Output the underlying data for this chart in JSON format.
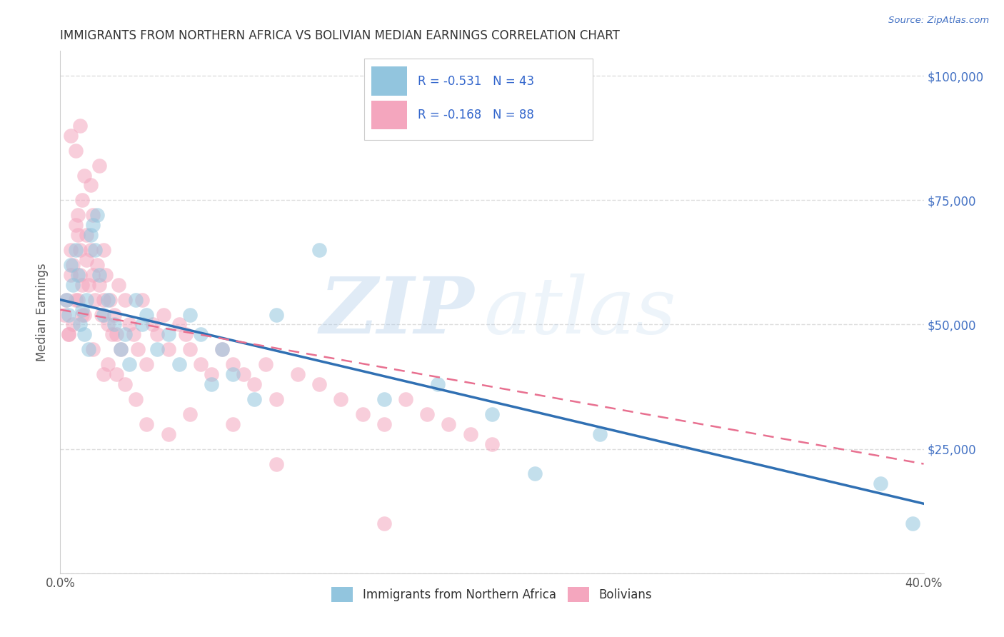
{
  "title": "IMMIGRANTS FROM NORTHERN AFRICA VS BOLIVIAN MEDIAN EARNINGS CORRELATION CHART",
  "source": "Source: ZipAtlas.com",
  "ylabel": "Median Earnings",
  "xlim": [
    0.0,
    0.4
  ],
  "ylim": [
    0,
    105000
  ],
  "yticks": [
    0,
    25000,
    50000,
    75000,
    100000
  ],
  "ytick_labels": [
    "",
    "$25,000",
    "$50,000",
    "$75,000",
    "$100,000"
  ],
  "xticks": [
    0.0,
    0.1,
    0.2,
    0.3,
    0.4
  ],
  "xtick_labels": [
    "0.0%",
    "",
    "",
    "",
    "40.0%"
  ],
  "blue_R": -0.531,
  "blue_N": 43,
  "pink_R": -0.168,
  "pink_N": 88,
  "blue_color": "#92c5de",
  "pink_color": "#f4a6be",
  "blue_line_color": "#3070b3",
  "pink_line_color": "#e87090",
  "background_color": "#ffffff",
  "grid_color": "#dddddd",
  "title_color": "#333333",
  "right_axis_color": "#4472c4",
  "legend_label_blue": "Immigrants from Northern Africa",
  "legend_label_pink": "Bolivians",
  "blue_line_x0": 0.0,
  "blue_line_y0": 55000,
  "blue_line_x1": 0.4,
  "blue_line_y1": 14000,
  "pink_line_x0": 0.0,
  "pink_line_y0": 53000,
  "pink_line_x1": 0.4,
  "pink_line_y1": 22000,
  "blue_scatter_x": [
    0.003,
    0.004,
    0.005,
    0.006,
    0.007,
    0.008,
    0.009,
    0.01,
    0.011,
    0.012,
    0.013,
    0.014,
    0.015,
    0.016,
    0.017,
    0.018,
    0.02,
    0.022,
    0.025,
    0.028,
    0.03,
    0.032,
    0.035,
    0.038,
    0.04,
    0.045,
    0.05,
    0.055,
    0.06,
    0.065,
    0.07,
    0.075,
    0.08,
    0.09,
    0.1,
    0.12,
    0.15,
    0.175,
    0.2,
    0.22,
    0.25,
    0.38,
    0.395
  ],
  "blue_scatter_y": [
    55000,
    52000,
    62000,
    58000,
    65000,
    60000,
    50000,
    53000,
    48000,
    55000,
    45000,
    68000,
    70000,
    65000,
    72000,
    60000,
    52000,
    55000,
    50000,
    45000,
    48000,
    42000,
    55000,
    50000,
    52000,
    45000,
    48000,
    42000,
    52000,
    48000,
    38000,
    45000,
    40000,
    35000,
    52000,
    65000,
    35000,
    38000,
    32000,
    20000,
    28000,
    18000,
    10000
  ],
  "pink_scatter_x": [
    0.002,
    0.003,
    0.004,
    0.005,
    0.005,
    0.006,
    0.007,
    0.007,
    0.008,
    0.008,
    0.009,
    0.009,
    0.01,
    0.01,
    0.011,
    0.012,
    0.012,
    0.013,
    0.014,
    0.015,
    0.015,
    0.016,
    0.017,
    0.018,
    0.019,
    0.02,
    0.02,
    0.021,
    0.022,
    0.023,
    0.024,
    0.025,
    0.026,
    0.027,
    0.028,
    0.03,
    0.032,
    0.034,
    0.036,
    0.038,
    0.04,
    0.043,
    0.045,
    0.048,
    0.05,
    0.055,
    0.058,
    0.06,
    0.065,
    0.07,
    0.075,
    0.08,
    0.085,
    0.09,
    0.095,
    0.1,
    0.11,
    0.12,
    0.13,
    0.14,
    0.15,
    0.16,
    0.17,
    0.18,
    0.19,
    0.2,
    0.005,
    0.007,
    0.009,
    0.011,
    0.014,
    0.018,
    0.022,
    0.026,
    0.03,
    0.035,
    0.04,
    0.05,
    0.06,
    0.08,
    0.1,
    0.15,
    0.004,
    0.006,
    0.008,
    0.01,
    0.015,
    0.02
  ],
  "pink_scatter_y": [
    52000,
    55000,
    48000,
    60000,
    65000,
    62000,
    55000,
    70000,
    68000,
    72000,
    65000,
    60000,
    75000,
    58000,
    52000,
    68000,
    63000,
    58000,
    65000,
    72000,
    60000,
    55000,
    62000,
    58000,
    52000,
    65000,
    55000,
    60000,
    50000,
    55000,
    48000,
    52000,
    48000,
    58000,
    45000,
    55000,
    50000,
    48000,
    45000,
    55000,
    42000,
    50000,
    48000,
    52000,
    45000,
    50000,
    48000,
    45000,
    42000,
    40000,
    45000,
    42000,
    40000,
    38000,
    42000,
    35000,
    40000,
    38000,
    35000,
    32000,
    30000,
    35000,
    32000,
    30000,
    28000,
    26000,
    88000,
    85000,
    90000,
    80000,
    78000,
    82000,
    42000,
    40000,
    38000,
    35000,
    30000,
    28000,
    32000,
    30000,
    22000,
    10000,
    48000,
    50000,
    55000,
    52000,
    45000,
    40000
  ]
}
